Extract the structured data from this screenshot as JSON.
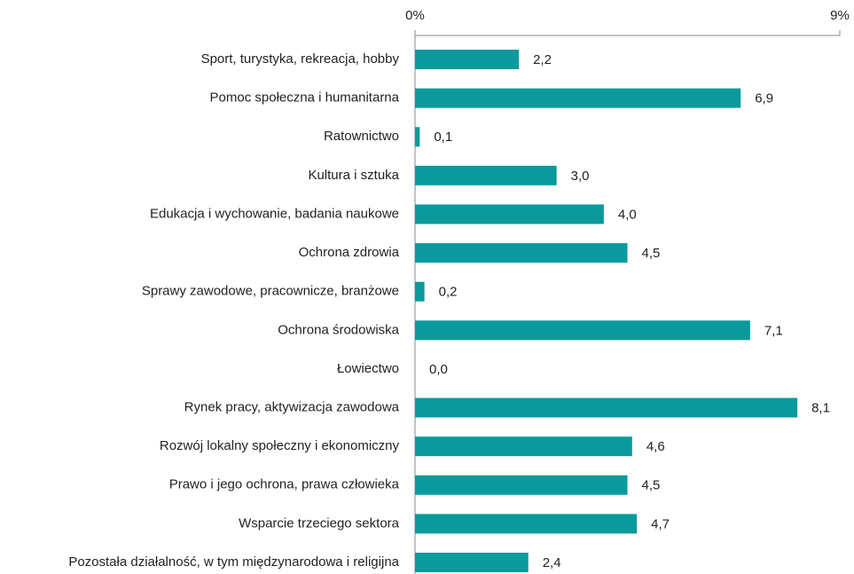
{
  "chart_data": {
    "type": "bar",
    "orientation": "horizontal",
    "categories": [
      "Sport, turystyka, rekreacja, hobby",
      "Pomoc społeczna i humanitarna",
      "Ratownictwo",
      "Kultura i sztuka",
      "Edukacja i wychowanie, badania naukowe",
      "Ochrona zdrowia",
      "Sprawy zawodowe, pracownicze, branżowe",
      "Ochrona środowiska",
      "Łowiectwo",
      "Rynek pracy, aktywizacja zawodowa",
      "Rozwój lokalny społeczny i ekonomiczny",
      "Prawo i jego ochrona, prawa człowieka",
      "Wsparcie trzeciego sektora",
      "Pozostała działalność, w tym międzynarodowa i religijna"
    ],
    "values": [
      2.2,
      6.9,
      0.1,
      3.0,
      4.0,
      4.5,
      0.2,
      7.1,
      0.0,
      8.1,
      4.6,
      4.5,
      4.7,
      2.4
    ],
    "value_labels": [
      "2,2",
      "6,9",
      "0,1",
      "3,0",
      "4,0",
      "4,5",
      "0,2",
      "7,1",
      "0,0",
      "8,1",
      "4,6",
      "4,5",
      "4,7",
      "2,4"
    ],
    "color": "#0a9a9c",
    "xlim": [
      0,
      9
    ],
    "xticks": [
      {
        "value": 0,
        "label": "0%"
      },
      {
        "value": 9,
        "label": "9%"
      }
    ]
  }
}
